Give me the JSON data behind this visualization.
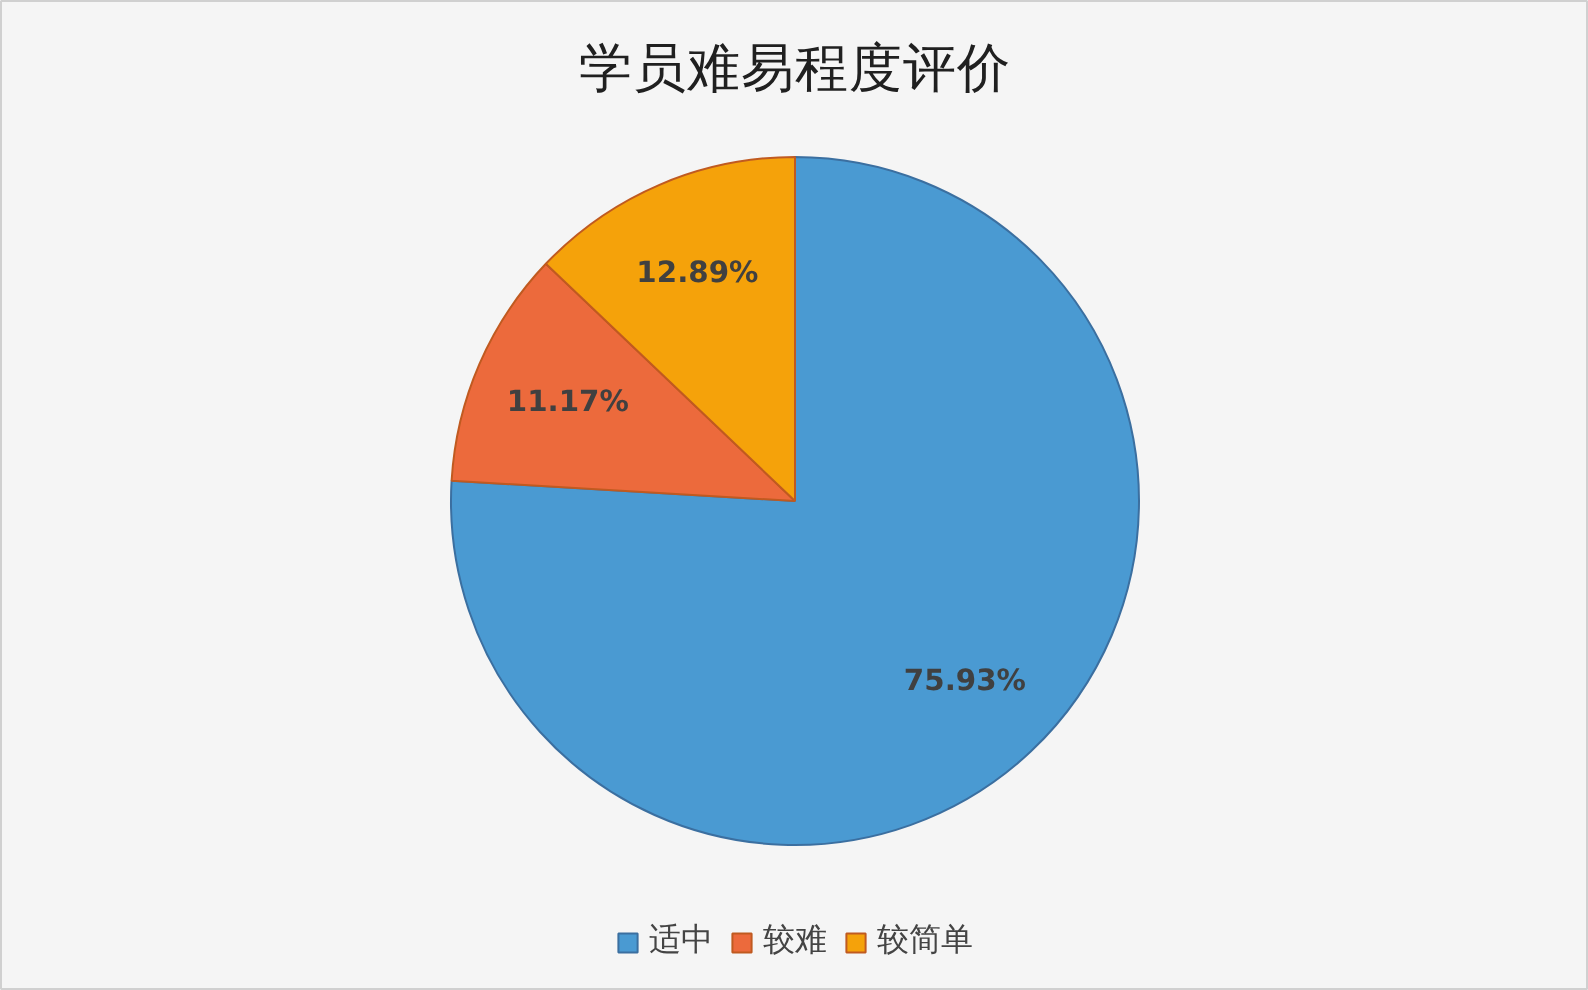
{
  "chart_data": {
    "type": "pie",
    "title": "学员难易程度评价",
    "categories": [
      "适中",
      "较难",
      "较简单"
    ],
    "values": [
      75.93,
      11.17,
      12.89
    ],
    "colors": [
      "#4a9ad2",
      "#ec6a3c",
      "#f5a20a"
    ],
    "value_labels": [
      "75.93%",
      "11.17%",
      "12.89%"
    ],
    "legend": "bottom"
  }
}
